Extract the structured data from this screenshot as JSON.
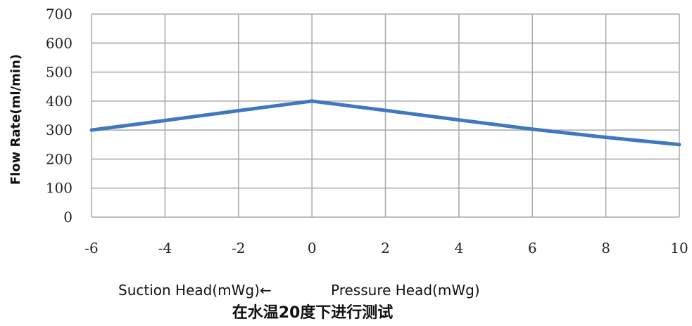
{
  "chart_data": {
    "type": "line",
    "x": [
      -6,
      -4,
      -2,
      0,
      2,
      4,
      6,
      8,
      10
    ],
    "series": [
      {
        "values": [
          300,
          333,
          367,
          400,
          368,
          335,
          303,
          275,
          250
        ]
      }
    ],
    "xlim": [
      -6,
      10
    ],
    "ylim": [
      0,
      700
    ],
    "x_ticks": [
      -6,
      -4,
      -2,
      0,
      2,
      4,
      6,
      8,
      10
    ],
    "y_ticks": [
      0,
      100,
      200,
      300,
      400,
      500,
      600,
      700
    ],
    "x_tick_labels": [
      "-6",
      "-4",
      "-2",
      "0",
      "2",
      "4",
      "6",
      "8",
      "10"
    ],
    "y_tick_labels": [
      "0",
      "100",
      "200",
      "300",
      "400",
      "500",
      "600",
      "700"
    ],
    "ylabel": "Flow Rate(ml/min)",
    "xlabel_left": "Suction Head(mWg)←",
    "xlabel_right": "Pressure Head(mWg)",
    "note": "在水温20度下进行测试",
    "grid": true,
    "line_color": "#3f78c0",
    "grid_color": "#a8a8a8"
  }
}
